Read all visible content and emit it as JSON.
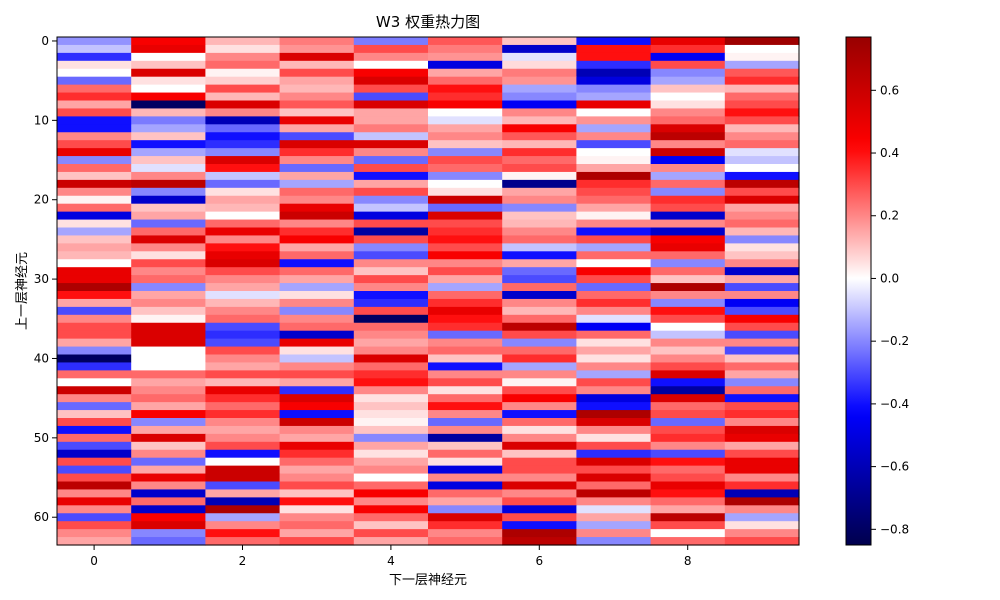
{
  "chart_data": {
    "type": "heatmap",
    "title": "W3 权重热力图",
    "xlabel": "下一层神经元",
    "ylabel": "上一层神经元",
    "x_range": [
      -0.5,
      9.5
    ],
    "y_range": [
      63.5,
      -0.5
    ],
    "x_ticks": [
      0,
      2,
      4,
      6,
      8
    ],
    "y_ticks": [
      0,
      10,
      20,
      30,
      40,
      50,
      60
    ],
    "colormap": "seismic",
    "colorbar": {
      "min": -0.85,
      "max": 0.77,
      "ticks": [
        -0.8,
        -0.6,
        -0.4,
        -0.2,
        0.0,
        0.2,
        0.4,
        0.6
      ],
      "tick_labels": [
        "−0.8",
        "−0.6",
        "−0.4",
        "−0.2",
        "0.0",
        "0.2",
        "0.4",
        "0.6"
      ]
    },
    "rows": 64,
    "cols": 10,
    "values": [
      [
        -0.18,
        0.45,
        0.12,
        0.22,
        -0.22,
        0.28,
        0.1,
        -0.4,
        0.5,
        0.75
      ],
      [
        -0.1,
        0.5,
        0.05,
        0.18,
        0.3,
        0.22,
        -0.55,
        0.4,
        0.35,
        0.0
      ],
      [
        -0.35,
        0.0,
        0.2,
        0.55,
        0.2,
        0.18,
        -0.05,
        0.4,
        -0.45,
        0.02
      ],
      [
        0.05,
        0.1,
        0.25,
        0.12,
        0.0,
        -0.5,
        0.06,
        -0.35,
        0.3,
        -0.15
      ],
      [
        0.0,
        0.55,
        0.02,
        0.3,
        0.45,
        0.15,
        0.22,
        -0.6,
        -0.2,
        0.28
      ],
      [
        -0.25,
        0.05,
        0.08,
        0.15,
        0.55,
        0.25,
        0.18,
        -0.5,
        -0.15,
        0.35
      ],
      [
        0.25,
        0.0,
        0.3,
        0.12,
        0.3,
        0.4,
        -0.15,
        -0.2,
        0.1,
        0.12
      ],
      [
        0.35,
        0.45,
        0.12,
        0.2,
        -0.3,
        0.35,
        -0.2,
        -0.15,
        0.0,
        0.25
      ],
      [
        0.15,
        -0.8,
        0.55,
        0.28,
        0.55,
        0.45,
        -0.45,
        0.5,
        0.05,
        0.3
      ],
      [
        0.3,
        0.12,
        0.2,
        0.1,
        0.15,
        0.0,
        0.2,
        0.0,
        0.2,
        0.4
      ],
      [
        -0.4,
        -0.22,
        -0.6,
        0.5,
        0.15,
        -0.05,
        0.12,
        0.18,
        0.25,
        0.3
      ],
      [
        -0.4,
        -0.15,
        -0.25,
        0.15,
        0.22,
        0.15,
        0.45,
        -0.15,
        0.55,
        0.12
      ],
      [
        0.2,
        0.1,
        -0.4,
        -0.3,
        -0.1,
        0.2,
        0.28,
        0.2,
        0.65,
        0.2
      ],
      [
        0.3,
        -0.4,
        -0.35,
        0.55,
        0.55,
        0.1,
        0.12,
        -0.3,
        0.2,
        0.25
      ],
      [
        0.5,
        -0.15,
        -0.2,
        0.35,
        0.2,
        -0.2,
        0.35,
        0.0,
        0.6,
        -0.05
      ],
      [
        -0.2,
        0.1,
        0.55,
        0.2,
        -0.25,
        0.3,
        0.25,
        0.02,
        -0.45,
        -0.1
      ],
      [
        0.25,
        -0.05,
        0.4,
        -0.25,
        0.3,
        0.25,
        0.3,
        0.15,
        0.2,
        0.0
      ],
      [
        0.1,
        0.2,
        -0.1,
        0.15,
        -0.4,
        -0.2,
        0.02,
        0.7,
        -0.15,
        -0.4
      ],
      [
        0.6,
        0.65,
        -0.25,
        -0.15,
        0.15,
        0.0,
        -0.7,
        0.35,
        0.25,
        0.65
      ],
      [
        0.2,
        -0.2,
        0.05,
        0.25,
        0.3,
        0.05,
        0.15,
        0.3,
        -0.2,
        0.3
      ],
      [
        0.02,
        -0.55,
        0.15,
        0.2,
        -0.2,
        0.6,
        0.2,
        0.25,
        0.35,
        0.55
      ],
      [
        0.25,
        0.1,
        0.12,
        0.5,
        -0.1,
        -0.25,
        -0.2,
        0.15,
        0.3,
        0.15
      ],
      [
        -0.5,
        0.15,
        0.0,
        0.6,
        -0.5,
        0.55,
        0.1,
        0.02,
        -0.55,
        0.2
      ],
      [
        0.05,
        -0.25,
        0.25,
        0.2,
        0.3,
        0.3,
        0.12,
        0.2,
        0.2,
        0.25
      ],
      [
        -0.15,
        0.25,
        0.5,
        0.35,
        -0.65,
        0.35,
        0.2,
        -0.4,
        -0.55,
        0.12
      ],
      [
        0.1,
        0.55,
        0.2,
        0.45,
        0.3,
        0.4,
        0.25,
        0.3,
        0.45,
        -0.2
      ],
      [
        0.15,
        0.2,
        0.4,
        0.15,
        -0.2,
        0.3,
        -0.1,
        -0.15,
        0.5,
        0.05
      ],
      [
        0.12,
        0.05,
        0.5,
        0.25,
        -0.3,
        0.45,
        -0.4,
        0.25,
        0.25,
        0.1
      ],
      [
        0.0,
        0.3,
        0.55,
        -0.4,
        0.2,
        0.2,
        0.15,
        0.0,
        -0.2,
        0.2
      ],
      [
        0.5,
        0.2,
        0.3,
        0.25,
        0.1,
        0.3,
        -0.25,
        0.45,
        0.25,
        -0.55
      ],
      [
        0.5,
        0.25,
        0.2,
        0.15,
        0.3,
        0.15,
        -0.3,
        0.3,
        0.1,
        0.15
      ],
      [
        0.7,
        -0.2,
        0.15,
        -0.15,
        0.2,
        -0.15,
        0.25,
        -0.25,
        0.7,
        -0.3
      ],
      [
        0.4,
        0.15,
        -0.05,
        0.05,
        -0.4,
        0.25,
        -0.55,
        0.25,
        0.2,
        0.2
      ],
      [
        0.15,
        0.2,
        0.12,
        0.2,
        -0.35,
        0.35,
        0.2,
        0.35,
        -0.2,
        -0.45
      ],
      [
        -0.3,
        0.1,
        0.2,
        -0.2,
        0.3,
        0.5,
        0.12,
        0.2,
        0.4,
        -0.3
      ],
      [
        0.2,
        0.02,
        0.25,
        0.2,
        -0.8,
        0.4,
        0.25,
        -0.05,
        0.3,
        0.45
      ],
      [
        0.3,
        0.55,
        -0.3,
        0.25,
        0.25,
        0.35,
        0.65,
        -0.45,
        0.0,
        0.3
      ],
      [
        0.3,
        0.55,
        -0.35,
        -0.55,
        0.2,
        -0.25,
        0.3,
        0.25,
        -0.1,
        -0.3
      ],
      [
        0.15,
        0.55,
        -0.3,
        0.5,
        0.15,
        0.2,
        -0.2,
        0.05,
        0.2,
        0.2
      ],
      [
        -0.2,
        0.0,
        0.3,
        0.05,
        0.2,
        0.25,
        0.25,
        0.15,
        0.1,
        -0.3
      ],
      [
        -0.8,
        0.0,
        0.2,
        -0.1,
        0.55,
        0.1,
        0.35,
        0.05,
        0.2,
        0.1
      ],
      [
        -0.35,
        0.0,
        0.15,
        0.2,
        0.25,
        -0.4,
        -0.15,
        0.2,
        0.3,
        0.25
      ],
      [
        0.25,
        0.25,
        0.3,
        0.3,
        0.35,
        0.2,
        0.2,
        -0.15,
        0.55,
        0.15
      ],
      [
        0.0,
        0.15,
        0.12,
        0.15,
        0.4,
        0.3,
        0.02,
        0.3,
        -0.4,
        -0.2
      ],
      [
        0.6,
        0.2,
        0.5,
        -0.35,
        0.2,
        0.05,
        0.3,
        0.2,
        -0.65,
        0.25
      ],
      [
        0.2,
        0.25,
        0.35,
        0.55,
        0.05,
        0.25,
        0.45,
        -0.5,
        0.55,
        -0.4
      ],
      [
        -0.25,
        0.15,
        0.25,
        0.45,
        0.1,
        0.4,
        0.2,
        -0.4,
        0.25,
        0.3
      ],
      [
        0.1,
        0.45,
        0.35,
        -0.4,
        0.05,
        0.2,
        -0.4,
        0.7,
        0.3,
        0.35
      ],
      [
        0.3,
        -0.2,
        0.2,
        0.6,
        0.02,
        -0.25,
        0.25,
        0.55,
        -0.25,
        0.2
      ],
      [
        -0.4,
        0.15,
        0.15,
        0.2,
        0.1,
        0.2,
        0.05,
        0.2,
        0.3,
        0.55
      ],
      [
        0.25,
        0.55,
        0.2,
        0.15,
        -0.2,
        -0.65,
        0.2,
        0.05,
        0.35,
        0.5
      ],
      [
        -0.3,
        0.1,
        0.3,
        0.5,
        0.15,
        0.1,
        0.55,
        0.3,
        0.2,
        0.15
      ],
      [
        -0.55,
        0.2,
        -0.4,
        0.35,
        0.05,
        0.25,
        0.1,
        -0.35,
        -0.3,
        0.3
      ],
      [
        0.3,
        -0.25,
        0.0,
        0.25,
        0.15,
        0.05,
        0.3,
        0.55,
        0.4,
        0.5
      ],
      [
        -0.3,
        0.15,
        0.6,
        0.15,
        0.2,
        -0.5,
        0.3,
        0.3,
        0.25,
        0.5
      ],
      [
        0.3,
        0.5,
        0.6,
        0.2,
        0.0,
        0.2,
        0.2,
        0.55,
        0.3,
        0.2
      ],
      [
        0.65,
        0.2,
        -0.3,
        0.3,
        0.25,
        -0.5,
        0.55,
        0.25,
        0.5,
        0.35
      ],
      [
        0.2,
        -0.55,
        0.15,
        0.1,
        0.45,
        0.25,
        0.2,
        0.65,
        0.4,
        -0.6
      ],
      [
        0.5,
        0.25,
        -0.6,
        0.4,
        0.2,
        0.15,
        0.3,
        0.2,
        0.25,
        0.7
      ],
      [
        0.2,
        -0.55,
        0.7,
        0.05,
        0.45,
        -0.2,
        -0.5,
        -0.05,
        0.15,
        0.2
      ],
      [
        -0.3,
        0.45,
        -0.15,
        0.2,
        0.25,
        0.55,
        0.3,
        0.15,
        0.65,
        -0.15
      ],
      [
        0.3,
        0.55,
        0.2,
        0.25,
        0.1,
        0.35,
        -0.4,
        -0.15,
        0.3,
        0.05
      ],
      [
        0.2,
        -0.2,
        0.4,
        0.15,
        0.3,
        0.2,
        0.7,
        0.2,
        0.0,
        0.2
      ],
      [
        0.15,
        -0.25,
        0.25,
        0.3,
        0.15,
        0.25,
        0.65,
        -0.2,
        0.25,
        0.3
      ]
    ]
  }
}
